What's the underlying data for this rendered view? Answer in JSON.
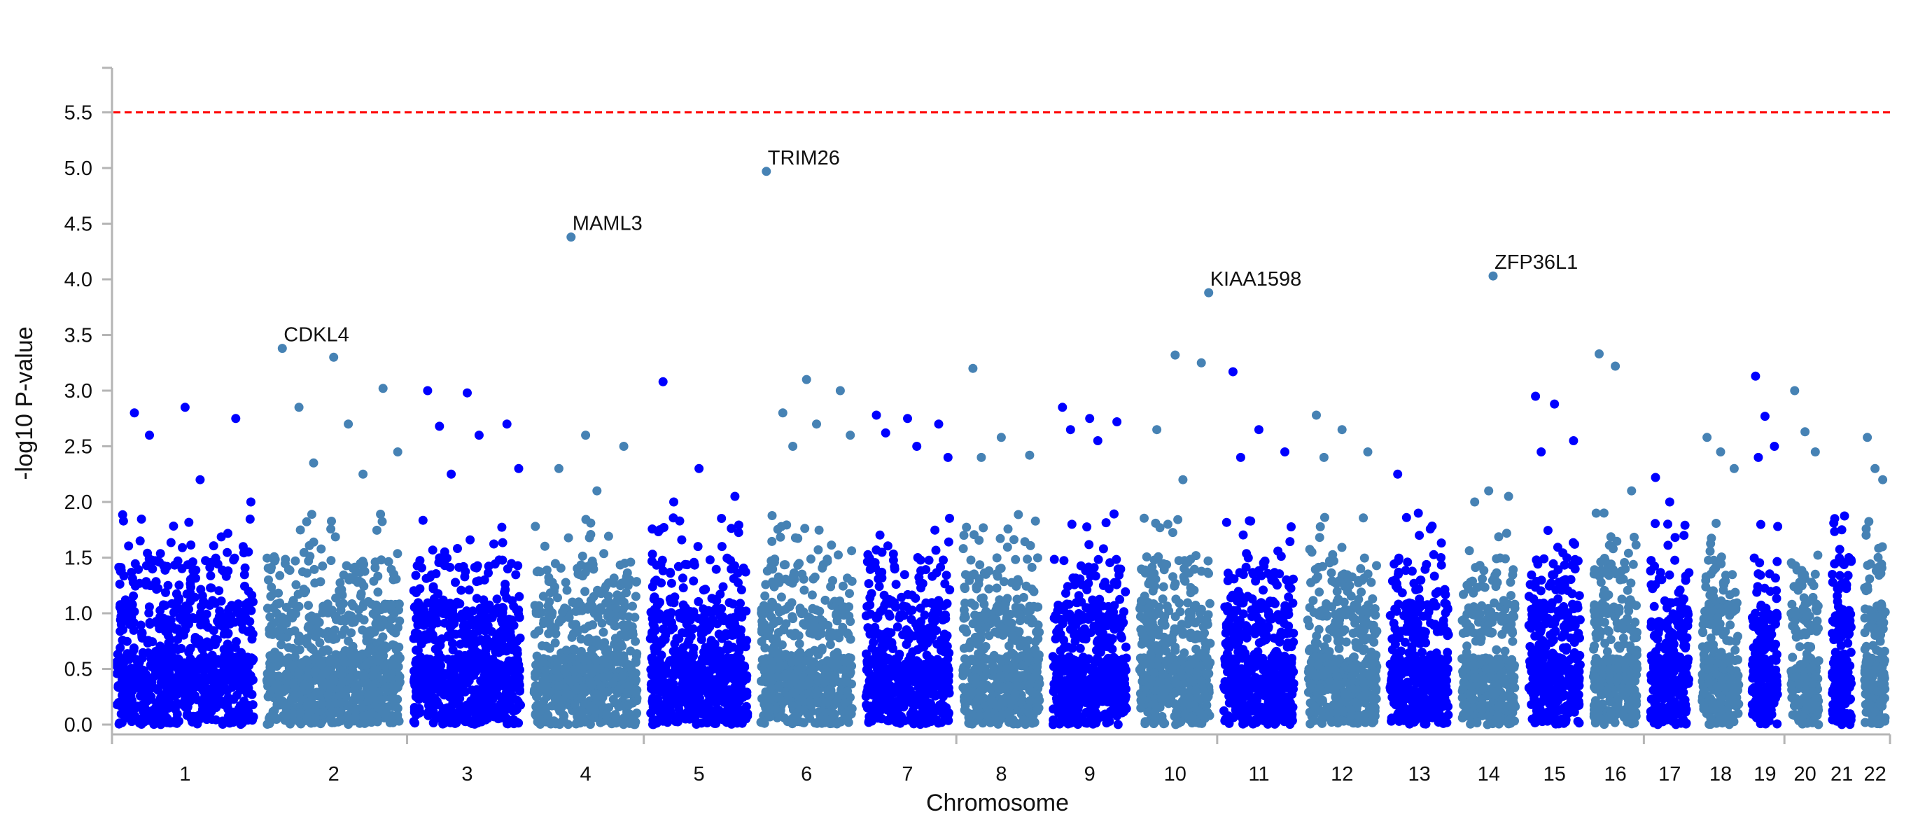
{
  "chart_data": {
    "type": "scatter",
    "subtype": "manhattan",
    "title": "",
    "xlabel": "Chromosome",
    "ylabel": "-log10 P-value",
    "ylim": [
      0,
      5.9
    ],
    "yticks": [
      0.0,
      0.5,
      1.0,
      1.5,
      2.0,
      2.5,
      3.0,
      3.5,
      4.0,
      4.5,
      5.0,
      5.5
    ],
    "ytick_labels": [
      "0.0",
      "0.5",
      "1.0",
      "1.5",
      "2.0",
      "2.5",
      "3.0",
      "3.5",
      "4.0",
      "4.5",
      "5.0",
      "5.5"
    ],
    "threshold": {
      "value": 5.5,
      "color": "#ff0000",
      "style": "dashed"
    },
    "colors": {
      "odd": "#0000ff",
      "even": "#4682b4"
    },
    "grid": false,
    "legend": "none",
    "chromosomes": [
      {
        "label": "1",
        "color": "#0000ff",
        "peaks": [
          2.8,
          2.85,
          2.75,
          2.6,
          2.2,
          2.0
        ]
      },
      {
        "label": "2",
        "color": "#4682b4",
        "peaks": [
          3.38,
          3.3,
          3.02,
          2.85,
          2.7,
          2.45,
          2.35,
          2.25
        ]
      },
      {
        "label": "3",
        "color": "#0000ff",
        "peaks": [
          3.0,
          2.98,
          2.7,
          2.68,
          2.6,
          2.3,
          2.25
        ]
      },
      {
        "label": "4",
        "color": "#4682b4",
        "peaks": [
          4.38,
          2.6,
          2.5,
          2.3,
          2.1
        ]
      },
      {
        "label": "5",
        "color": "#0000ff",
        "peaks": [
          3.08,
          2.3,
          2.05,
          2.0
        ]
      },
      {
        "label": "6",
        "color": "#4682b4",
        "peaks": [
          4.97,
          3.1,
          3.0,
          2.8,
          2.7,
          2.6,
          2.5
        ]
      },
      {
        "label": "7",
        "color": "#0000ff",
        "peaks": [
          2.78,
          2.75,
          2.7,
          2.62,
          2.5,
          2.4
        ]
      },
      {
        "label": "8",
        "color": "#4682b4",
        "peaks": [
          3.2,
          2.58,
          2.42,
          2.4
        ]
      },
      {
        "label": "9",
        "color": "#0000ff",
        "peaks": [
          2.85,
          2.75,
          2.72,
          2.65,
          2.55
        ]
      },
      {
        "label": "10",
        "color": "#4682b4",
        "peaks": [
          3.88,
          3.32,
          3.25,
          2.65,
          2.2
        ]
      },
      {
        "label": "11",
        "color": "#0000ff",
        "peaks": [
          3.17,
          2.65,
          2.45,
          2.4
        ]
      },
      {
        "label": "12",
        "color": "#4682b4",
        "peaks": [
          2.78,
          2.65,
          2.45,
          2.4
        ]
      },
      {
        "label": "13",
        "color": "#0000ff",
        "peaks": [
          2.25,
          1.7,
          1.5
        ]
      },
      {
        "label": "14",
        "color": "#4682b4",
        "peaks": [
          4.03,
          2.1,
          2.05,
          2.0
        ]
      },
      {
        "label": "15",
        "color": "#0000ff",
        "peaks": [
          2.95,
          2.88,
          2.55,
          2.45
        ]
      },
      {
        "label": "16",
        "color": "#4682b4",
        "peaks": [
          3.33,
          3.22,
          2.1,
          1.9
        ]
      },
      {
        "label": "17",
        "color": "#0000ff",
        "peaks": [
          2.22,
          2.0,
          1.7
        ]
      },
      {
        "label": "18",
        "color": "#4682b4",
        "peaks": [
          2.58,
          2.45,
          2.3
        ]
      },
      {
        "label": "19",
        "color": "#0000ff",
        "peaks": [
          3.13,
          2.77,
          2.5,
          2.4
        ]
      },
      {
        "label": "20",
        "color": "#4682b4",
        "peaks": [
          3.0,
          2.63,
          2.45
        ]
      },
      {
        "label": "21",
        "color": "#0000ff",
        "peaks": [
          1.85,
          1.75,
          1.5
        ]
      },
      {
        "label": "22",
        "color": "#4682b4",
        "peaks": [
          2.58,
          2.3,
          2.2
        ]
      }
    ],
    "annotations": [
      {
        "chr": "2",
        "pos": 0.14,
        "value": 3.38,
        "text": "CDKL4"
      },
      {
        "chr": "4",
        "pos": 0.37,
        "value": 4.38,
        "text": "MAML3"
      },
      {
        "chr": "6",
        "pos": 0.1,
        "value": 4.97,
        "text": "TRIM26"
      },
      {
        "chr": "10",
        "pos": 0.92,
        "value": 3.88,
        "text": "KIAA1598"
      },
      {
        "chr": "14",
        "pos": 0.57,
        "value": 4.03,
        "text": "ZFP36L1"
      }
    ]
  }
}
